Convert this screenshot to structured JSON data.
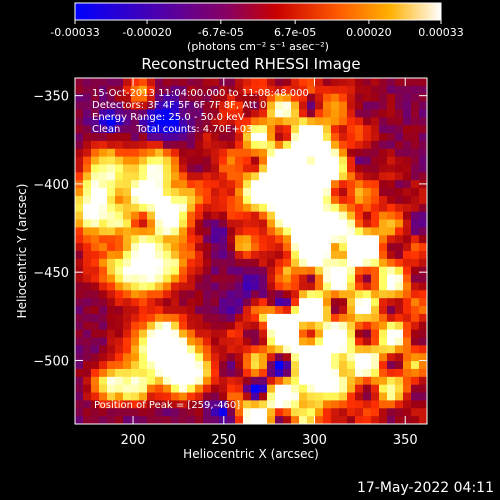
{
  "window": {
    "footer_timestamp": "17-May-2022 04:11"
  },
  "colorbar": {
    "tick_labels": [
      "-0.00033",
      "-0.00020",
      "-6.7e-05",
      "6.7e-05",
      "0.00020",
      "0.00033"
    ],
    "tick_values": [
      -0.00033,
      -0.0002,
      -6.7e-05,
      6.7e-05,
      0.0002,
      0.00033
    ],
    "range": [
      -0.00033,
      0.00033
    ],
    "units_label": "(photons cm⁻² s⁻¹ asec⁻²)"
  },
  "chart_data": {
    "type": "heatmap",
    "title": "Reconstructed RHESSI Image",
    "xlabel": "Heliocentric X (arcsec)",
    "ylabel": "Heliocentric Y (arcsec)",
    "xlim": [
      168,
      362
    ],
    "ylim": [
      -536,
      -340
    ],
    "x_ticks": [
      200,
      250,
      300,
      350
    ],
    "y_ticks": [
      -350,
      -400,
      -450,
      -500
    ],
    "x_tick_labels": [
      "200",
      "250",
      "300",
      "350"
    ],
    "y_tick_labels": [
      "−350",
      "−400",
      "−450",
      "−500"
    ],
    "colorscale": [
      "#0000ff",
      "#5c0090",
      "#a00010",
      "#ff3000",
      "#ff9800",
      "#ffff60",
      "#ffffff"
    ],
    "peak": [
      259,
      -460
    ],
    "annotations": [
      "15-Oct-2013 11:04:00.000 to 11:08:48.000",
      "Detectors: 3F 4F 5F 6F 7F 8F, Att 0",
      "Energy Range: 25.0 - 50.0 keV",
      "Clean     Total counts: 4.70E+03",
      "Position of Peak = [259,-460]"
    ]
  }
}
